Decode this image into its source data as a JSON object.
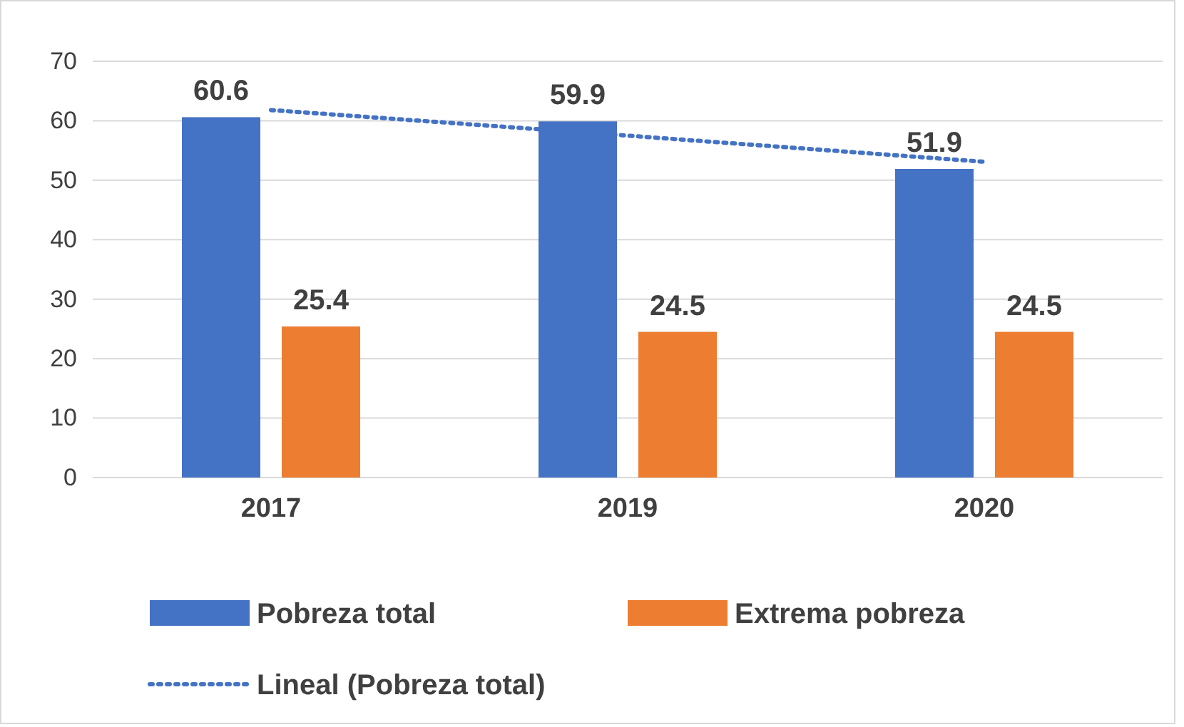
{
  "chart_data": {
    "type": "bar",
    "categories": [
      "2017",
      "2019",
      "2020"
    ],
    "ylim": [
      0,
      70
    ],
    "yticks": [
      0,
      10,
      20,
      30,
      40,
      50,
      60,
      70
    ],
    "grid": "y",
    "legend": "bottom",
    "series": [
      {
        "name": "Pobreza total",
        "color": "#4472c4",
        "values": [
          60.6,
          59.9,
          51.9
        ],
        "value_labels": [
          "60.6",
          "59.9",
          "51.9"
        ]
      },
      {
        "name": "Extrema pobreza",
        "color": "#ed7d31",
        "values": [
          25.4,
          24.5,
          24.5
        ],
        "value_labels": [
          "25.4",
          "24.5",
          "24.5"
        ]
      },
      {
        "name": "Lineal (Pobreza total)",
        "type": "line",
        "color": "#4472c4",
        "line_style": "dotted",
        "values": [
          61.8,
          57.5,
          53.1
        ]
      }
    ]
  }
}
